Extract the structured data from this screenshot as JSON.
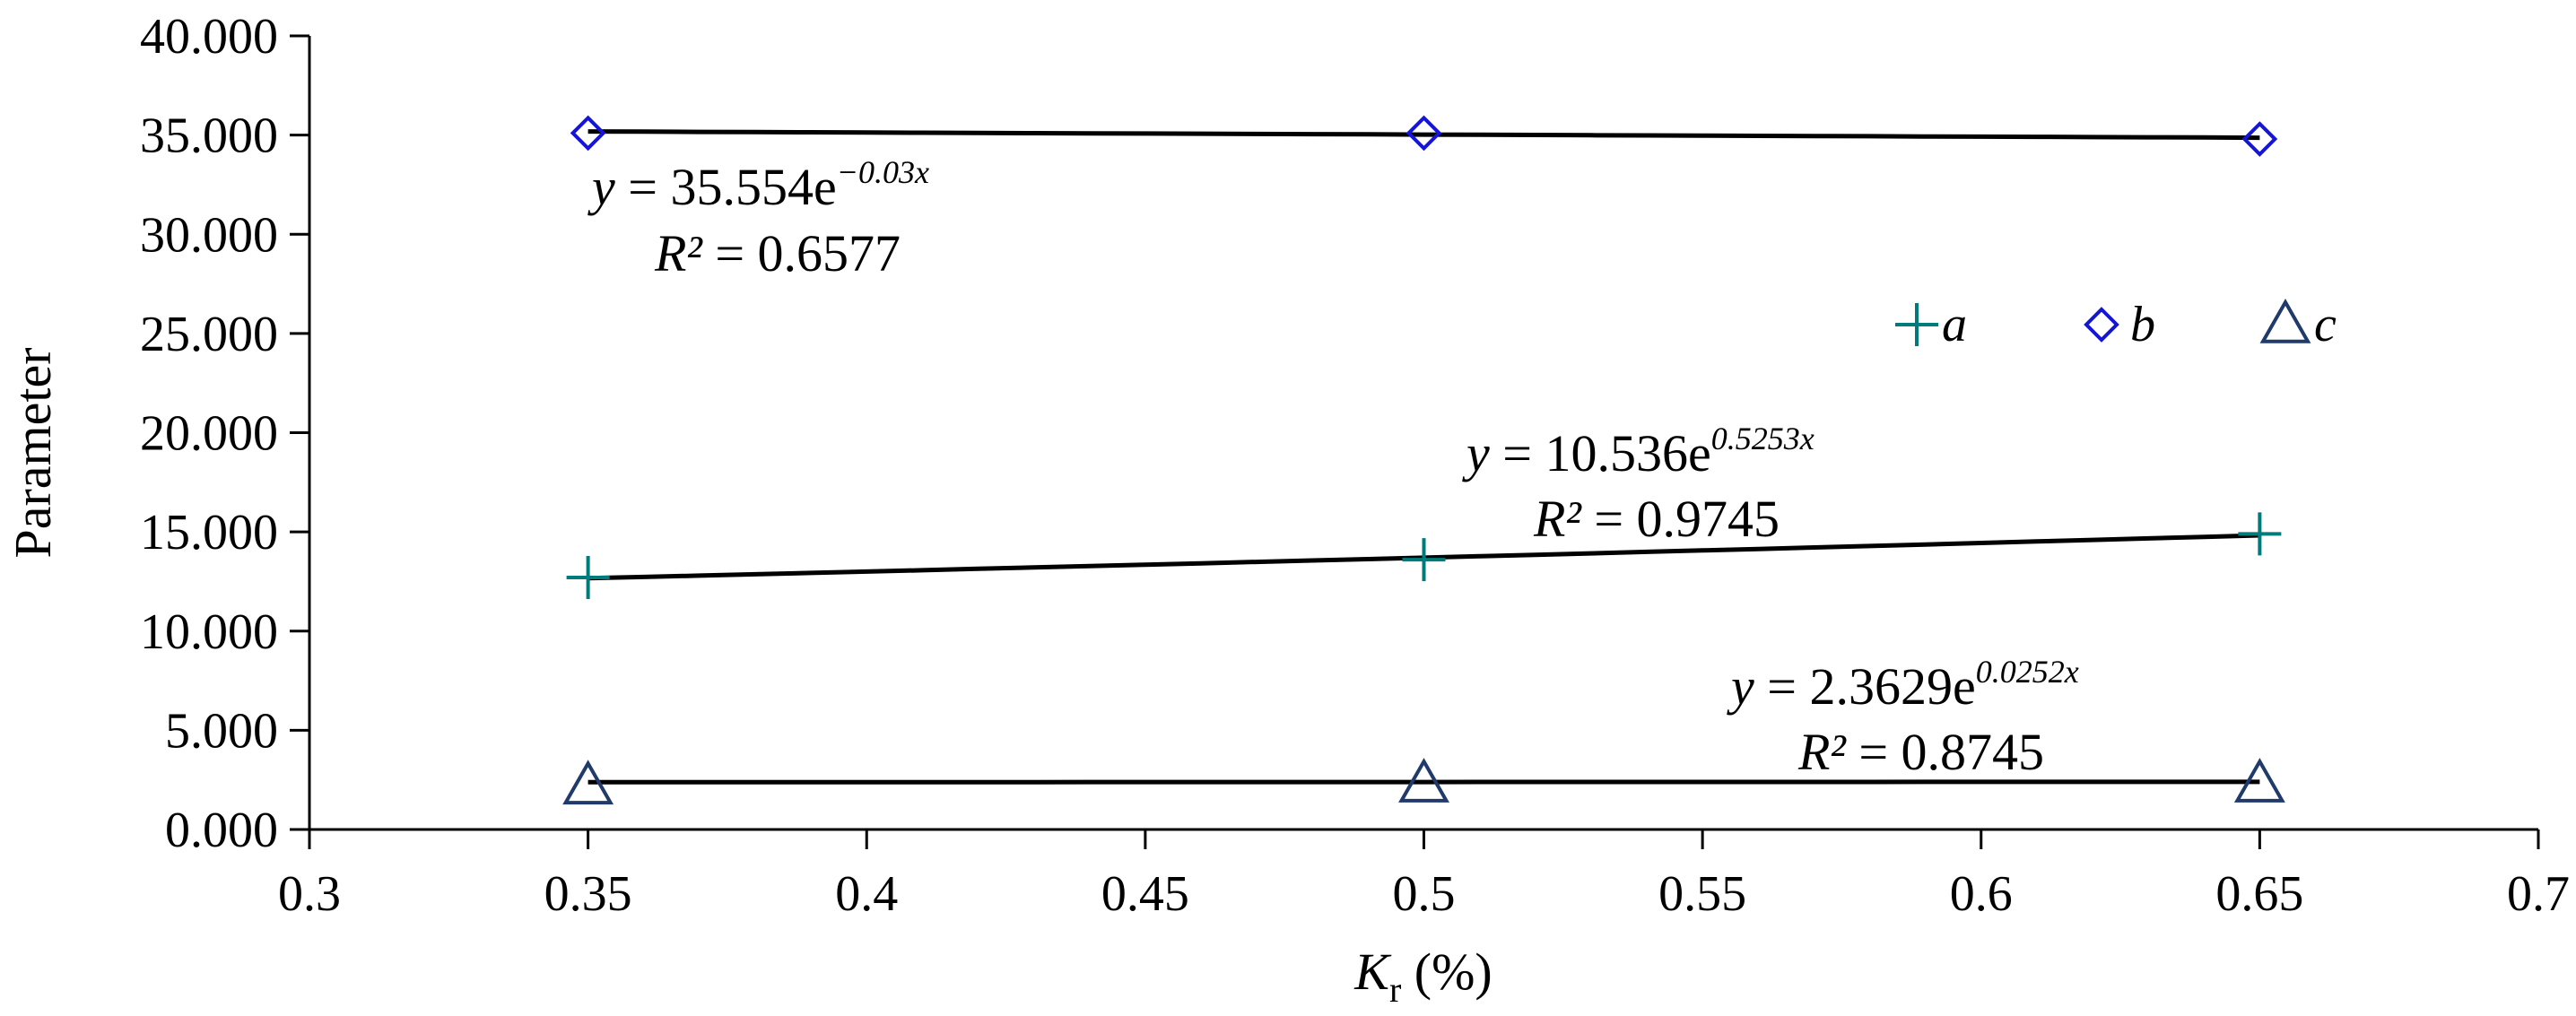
{
  "chart_data": {
    "type": "scatter",
    "x": [
      0.35,
      0.5,
      0.65
    ],
    "xlim": [
      0.3,
      0.7
    ],
    "ylim": [
      0,
      40
    ],
    "x_ticks": [
      "0.3",
      "0.35",
      "0.4",
      "0.45",
      "0.5",
      "0.55",
      "0.6",
      "0.65",
      "0.7"
    ],
    "y_ticks": [
      "0.000",
      "5.000",
      "10.000",
      "15.000",
      "20.000",
      "25.000",
      "30.000",
      "35.000",
      "40.000"
    ],
    "ylabel": "Parameter",
    "xlabel": {
      "var": "K",
      "sub": "r",
      "unit": " (%)"
    },
    "grid": false,
    "legend_position": "right",
    "series": [
      {
        "name": "a",
        "marker": "plus",
        "color": "#007b7b",
        "values": [
          12.7,
          13.6,
          14.9
        ],
        "trend": {
          "a": 10.536,
          "b": 0.5253
        },
        "equation": {
          "prefix": "y",
          "mid": " = 10.536e",
          "exp": "0.5253x",
          "r2_label": "R²",
          "r2": " = 0.9745"
        }
      },
      {
        "name": "b",
        "marker": "diamond",
        "color": "#1515d4",
        "values": [
          35.1,
          35.1,
          34.8
        ],
        "trend": {
          "a": 35.554,
          "b": -0.03
        },
        "equation": {
          "prefix": "y",
          "mid": " = 35.554e",
          "exp": "−0.03x",
          "r2_label": "R²",
          "r2": " = 0.6577"
        }
      },
      {
        "name": "c",
        "marker": "triangle",
        "color": "#1f3a6b",
        "values": [
          2.2,
          2.3,
          2.3
        ],
        "trend": {
          "a": 2.3629,
          "b": 0.0252
        },
        "equation": {
          "prefix": "y",
          "mid": " = 2.3629e",
          "exp": "0.0252x",
          "r2_label": "R²",
          "r2": " = 0.8745"
        }
      }
    ]
  }
}
